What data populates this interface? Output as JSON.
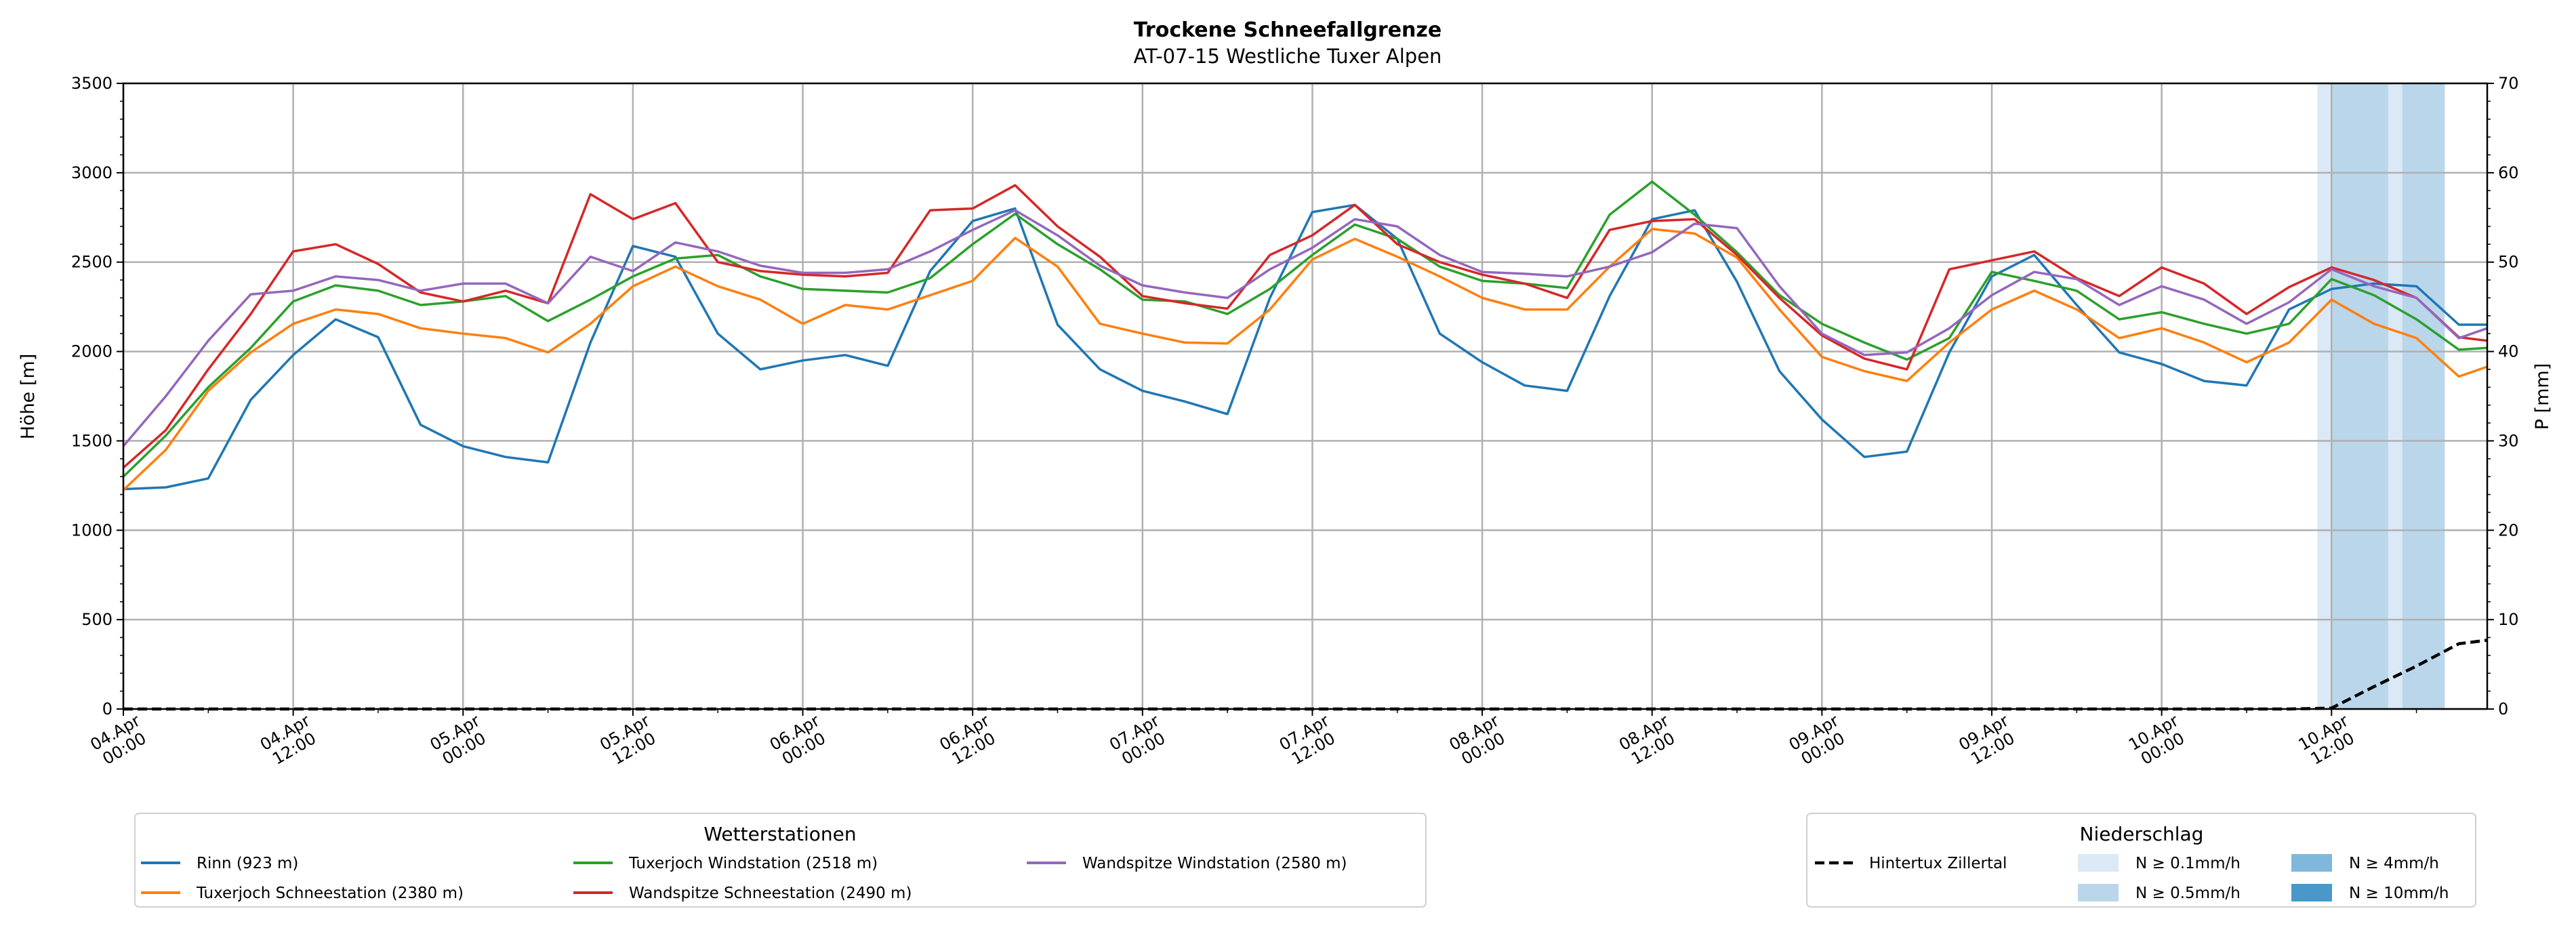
{
  "chart_data": {
    "type": "line",
    "title": "Trockene Schneefallgrenze",
    "subtitle": "AT-07-15 Westliche Tuxer Alpen",
    "ylabel": "Höhe [m]",
    "y2label": "P [mm]",
    "ylim": [
      0,
      3500
    ],
    "y2lim": [
      0,
      70
    ],
    "yticks": [
      "0",
      "500",
      "1000",
      "1500",
      "2000",
      "2500",
      "3000",
      "3500"
    ],
    "y2ticks": [
      "0",
      "10",
      "20",
      "30",
      "40",
      "50",
      "60",
      "70"
    ],
    "x_unit": "hours since 04.Apr 00:00",
    "xlim": [
      0,
      167
    ],
    "grid": true,
    "xticks": [
      {
        "h": 0,
        "l1": "04.Apr",
        "l2": "00:00"
      },
      {
        "h": 12,
        "l1": "04.Apr",
        "l2": "12:00"
      },
      {
        "h": 24,
        "l1": "05.Apr",
        "l2": "00:00"
      },
      {
        "h": 36,
        "l1": "05.Apr",
        "l2": "12:00"
      },
      {
        "h": 48,
        "l1": "06.Apr",
        "l2": "00:00"
      },
      {
        "h": 60,
        "l1": "06.Apr",
        "l2": "12:00"
      },
      {
        "h": 72,
        "l1": "07.Apr",
        "l2": "00:00"
      },
      {
        "h": 84,
        "l1": "07.Apr",
        "l2": "12:00"
      },
      {
        "h": 96,
        "l1": "08.Apr",
        "l2": "00:00"
      },
      {
        "h": 108,
        "l1": "08.Apr",
        "l2": "12:00"
      },
      {
        "h": 120,
        "l1": "09.Apr",
        "l2": "00:00"
      },
      {
        "h": 132,
        "l1": "09.Apr",
        "l2": "12:00"
      },
      {
        "h": 144,
        "l1": "10.Apr",
        "l2": "00:00"
      },
      {
        "h": 156,
        "l1": "10.Apr",
        "l2": "12:00"
      }
    ],
    "x": [
      0,
      3,
      6,
      9,
      12,
      15,
      18,
      21,
      24,
      27,
      30,
      33,
      36,
      39,
      42,
      45,
      48,
      51,
      54,
      57,
      60,
      63,
      66,
      69,
      72,
      75,
      78,
      81,
      84,
      87,
      90,
      93,
      96,
      99,
      102,
      105,
      108,
      111,
      114,
      117,
      120,
      123,
      126,
      129,
      132,
      135,
      138,
      141,
      144,
      147,
      150,
      153,
      156,
      159,
      162,
      165,
      167
    ],
    "series": [
      {
        "name": "Rinn (923 m)",
        "color": "#1f77b4",
        "values": [
          1230,
          1240,
          1290,
          1730,
          1980,
          2180,
          2080,
          1590,
          1470,
          1410,
          1380,
          2050,
          2590,
          2530,
          2100,
          1900,
          1950,
          1980,
          1920,
          2450,
          2730,
          2800,
          2150,
          1900,
          1780,
          1720,
          1650,
          2300,
          2780,
          2820,
          2630,
          2100,
          1940,
          1810,
          1780,
          2310,
          2740,
          2790,
          2390,
          1890,
          1620,
          1410,
          1440,
          1995,
          2420,
          2540,
          2260,
          1995,
          1930,
          1835,
          1810,
          2235,
          2350,
          2380,
          2365,
          2150,
          2150
        ]
      },
      {
        "name": "Tuxerjoch Schneestation (2380 m)",
        "color": "#ff7f0e",
        "values": [
          1225,
          1450,
          1780,
          1995,
          2155,
          2235,
          2210,
          2130,
          2100,
          2075,
          1995,
          2155,
          2365,
          2475,
          2365,
          2290,
          2155,
          2260,
          2235,
          2315,
          2395,
          2635,
          2475,
          2155,
          2100,
          2050,
          2045,
          2235,
          2515,
          2630,
          2530,
          2420,
          2300,
          2235,
          2235,
          2475,
          2685,
          2660,
          2525,
          2235,
          1970,
          1890,
          1835,
          2050,
          2235,
          2340,
          2235,
          2075,
          2130,
          2050,
          1940,
          2050,
          2290,
          2155,
          2075,
          1860,
          1915
        ]
      },
      {
        "name": "Tuxerjoch Windstation (2518 m)",
        "color": "#2ca02c",
        "values": [
          1300,
          1530,
          1800,
          2020,
          2280,
          2370,
          2340,
          2260,
          2280,
          2310,
          2170,
          2290,
          2420,
          2520,
          2540,
          2420,
          2350,
          2340,
          2330,
          2410,
          2600,
          2770,
          2600,
          2460,
          2290,
          2280,
          2210,
          2350,
          2540,
          2710,
          2630,
          2475,
          2395,
          2380,
          2355,
          2765,
          2950,
          2765,
          2555,
          2315,
          2155,
          2050,
          1955,
          2075,
          2445,
          2395,
          2340,
          2180,
          2220,
          2155,
          2100,
          2155,
          2405,
          2315,
          2180,
          2010,
          2020
        ]
      },
      {
        "name": "Wandspitze Schneestation (2490 m)",
        "color": "#d62728",
        "values": [
          1350,
          1560,
          1900,
          2210,
          2560,
          2600,
          2490,
          2330,
          2280,
          2340,
          2270,
          2880,
          2740,
          2830,
          2500,
          2450,
          2430,
          2420,
          2440,
          2790,
          2800,
          2930,
          2700,
          2530,
          2310,
          2270,
          2240,
          2540,
          2650,
          2820,
          2600,
          2500,
          2430,
          2380,
          2300,
          2680,
          2730,
          2740,
          2540,
          2300,
          2090,
          1960,
          1900,
          2460,
          2510,
          2560,
          2410,
          2310,
          2470,
          2380,
          2210,
          2360,
          2470,
          2400,
          2300,
          2080,
          2060
        ]
      },
      {
        "name": "Wandspitze Windstation (2580 m)",
        "color": "#9467bd",
        "values": [
          1470,
          1750,
          2060,
          2320,
          2340,
          2420,
          2400,
          2340,
          2380,
          2380,
          2270,
          2530,
          2450,
          2610,
          2560,
          2480,
          2440,
          2440,
          2460,
          2560,
          2680,
          2790,
          2650,
          2480,
          2370,
          2330,
          2300,
          2460,
          2580,
          2740,
          2700,
          2540,
          2445,
          2435,
          2420,
          2475,
          2555,
          2715,
          2690,
          2365,
          2100,
          1980,
          1995,
          2130,
          2315,
          2445,
          2405,
          2260,
          2365,
          2290,
          2155,
          2275,
          2460,
          2365,
          2300,
          2075,
          2130
        ]
      }
    ],
    "precip_series": {
      "name": "Hintertux Zillertal",
      "color": "#000000",
      "axis": "right",
      "values": [
        0,
        0,
        0,
        0,
        0,
        0,
        0,
        0,
        0,
        0,
        0,
        0,
        0,
        0,
        0,
        0,
        0,
        0,
        0,
        0,
        0,
        0,
        0,
        0,
        0,
        0,
        0,
        0,
        0,
        0,
        0,
        0,
        0,
        0,
        0,
        0,
        0,
        0,
        0,
        0,
        0,
        0,
        0,
        0,
        0,
        0,
        0,
        0,
        0,
        0,
        0,
        0,
        0.1,
        2.5,
        4.8,
        7.3,
        7.7
      ]
    },
    "precip_bands": [
      {
        "start_h": 155,
        "end_h": 164,
        "level": "N ≥ 0.1mm/h"
      },
      {
        "start_h": 156,
        "end_h": 160,
        "level": "N ≥ 0.5mm/h"
      },
      {
        "start_h": 161,
        "end_h": 164,
        "level": "N ≥ 0.5mm/h"
      }
    ],
    "legend_stations": {
      "title": "Wetterstationen",
      "placement": "bottom-left"
    },
    "legend_precip": {
      "title": "Niederschlag",
      "placement": "bottom-right",
      "levels": [
        {
          "label": "N ≥ 0.1mm/h",
          "color": "#dbe9f6"
        },
        {
          "label": "N ≥ 0.5mm/h",
          "color": "#bad6eb"
        },
        {
          "label": "N ≥ 4mm/h",
          "color": "#7fb8da"
        },
        {
          "label": "N ≥ 10mm/h",
          "color": "#4a98c9"
        }
      ]
    }
  }
}
